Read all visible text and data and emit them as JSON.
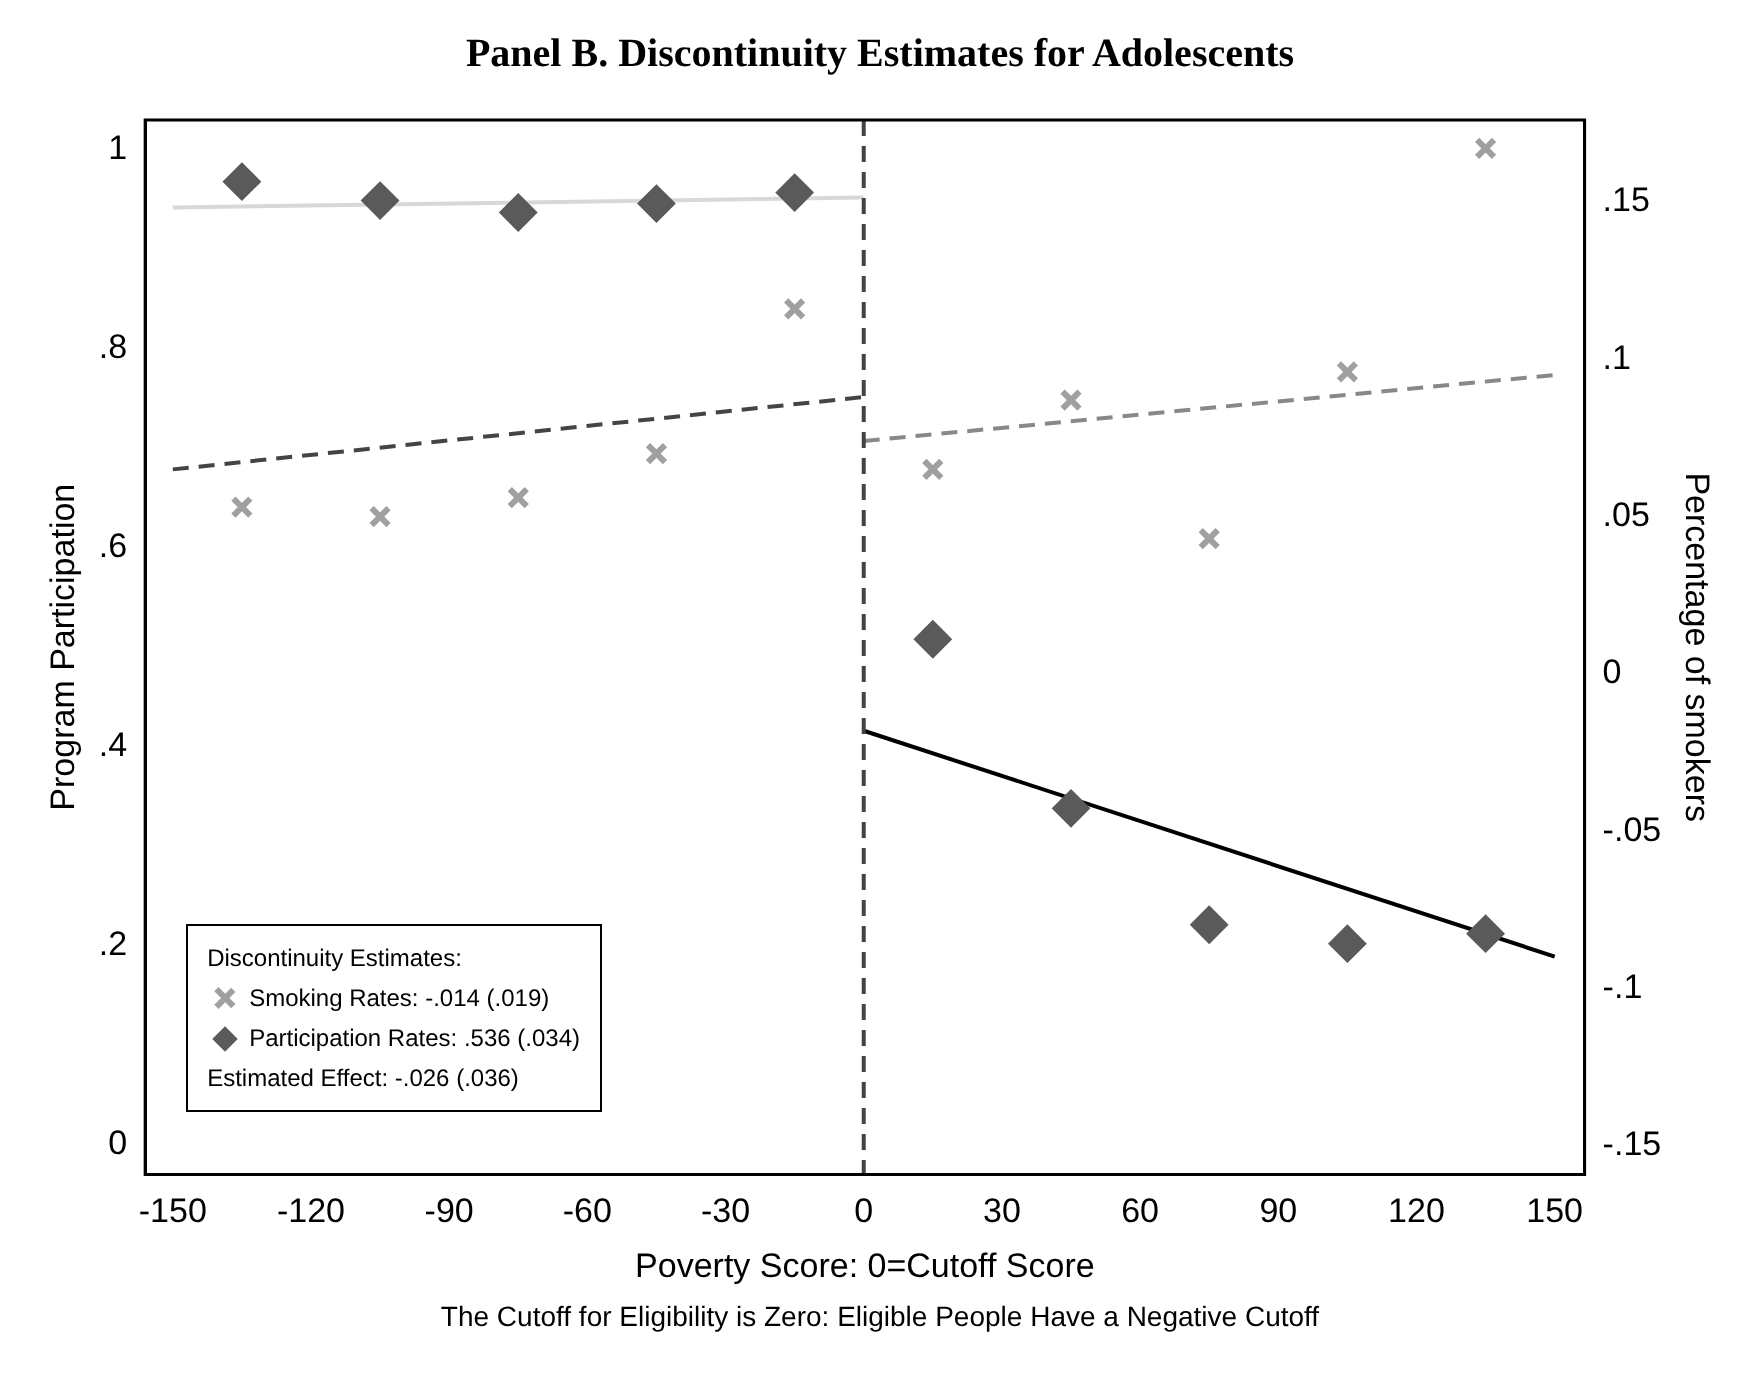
{
  "chart_data": {
    "type": "scatter",
    "title": "Panel B. Discontinuity Estimates for Adolescents",
    "xlabel": "Poverty Score: 0=Cutoff Score",
    "ylabel": "Program Participation",
    "y2label": "Percentage of smokers",
    "legend_title": "Discontinuity Estimates:",
    "annotations": [
      "Estimated Effect: -.026 (.036)",
      "The Cutoff for Eligibility is Zero: Eligible People Have a Negative Cutoff"
    ],
    "xlim": [
      -156,
      156.5
    ],
    "xticks": [
      -150,
      -120,
      -90,
      -60,
      -30,
      0,
      30,
      60,
      90,
      120,
      150
    ],
    "ylim": [
      -0.03,
      1.03
    ],
    "yticks": [
      0,
      {
        "value": 0.2,
        "label": ".2"
      },
      {
        "value": 0.4,
        "label": ".4"
      },
      {
        "value": 0.6,
        "label": ".6"
      },
      {
        "value": 0.8,
        "label": ".8"
      },
      1
    ],
    "y2lim": [
      -0.159,
      0.176
    ],
    "y2ticks": [
      {
        "value": -0.15,
        "label": "-.15"
      },
      {
        "value": -0.1,
        "label": "-.1"
      },
      {
        "value": -0.05,
        "label": "-.05"
      },
      0,
      {
        "value": 0.05,
        "label": ".05"
      },
      {
        "value": 0.1,
        "label": ".1"
      },
      {
        "value": 0.15,
        "label": ".15"
      }
    ],
    "grid": false,
    "legend": "bottom left",
    "ref_lines": [
      {
        "axis": "x",
        "value": 0,
        "color": "#444444",
        "line_style": "dashed"
      }
    ],
    "series": [
      {
        "name": "Smoking Rates: -.014 (.019)",
        "type": "scatter",
        "marker": "cross",
        "axis": "y2",
        "color": "#a0a0a0",
        "x": [
          -135,
          -105,
          -75,
          -45,
          -15,
          15,
          45,
          75,
          105,
          135
        ],
        "values": [
          0.053,
          0.05,
          0.056,
          0.07,
          0.116,
          0.065,
          0.087,
          0.043,
          0.096,
          0.167
        ]
      },
      {
        "name": "Participation Rates: .536 (.034)",
        "type": "scatter",
        "marker": "diamond",
        "axis": "y",
        "color": "#5a5a5a",
        "x": [
          -135,
          -105,
          -75,
          -45,
          -15,
          15,
          45,
          75,
          105,
          135
        ],
        "values": [
          0.968,
          0.949,
          0.937,
          0.946,
          0.957,
          0.508,
          0.338,
          0.221,
          0.202,
          0.212
        ]
      },
      {
        "type": "line",
        "axis": "y",
        "color": "#d8d8d8",
        "line_style": "solid",
        "marker": "none",
        "x": [
          -150,
          0
        ],
        "values": [
          0.942,
          0.952
        ]
      },
      {
        "type": "line",
        "axis": "y",
        "color": "#000000",
        "line_style": "solid",
        "marker": "none",
        "x": [
          0,
          150
        ],
        "values": [
          0.416,
          0.189
        ]
      },
      {
        "type": "line",
        "axis": "y2",
        "color": "#444444",
        "line_style": "dashed",
        "marker": "none",
        "x": [
          -150,
          0
        ],
        "values": [
          0.065,
          0.088
        ]
      },
      {
        "type": "line",
        "axis": "y2",
        "color": "#888888",
        "line_style": "dashed",
        "marker": "none",
        "x": [
          0,
          150
        ],
        "values": [
          0.074,
          0.095
        ]
      }
    ]
  }
}
